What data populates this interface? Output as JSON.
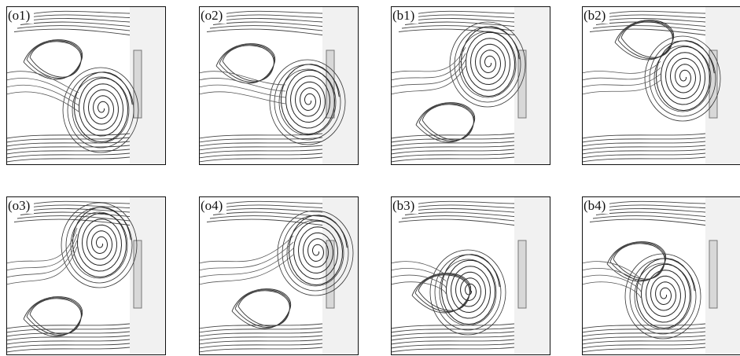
{
  "panels": [
    {
      "label": "(o1)"
    },
    {
      "label": "(o2)"
    },
    {
      "label": "(b1)"
    },
    {
      "label": "(b2)"
    },
    {
      "label": "(o3)"
    },
    {
      "label": "(o4)"
    },
    {
      "label": "(b3)"
    },
    {
      "label": "(b4)"
    }
  ]
}
